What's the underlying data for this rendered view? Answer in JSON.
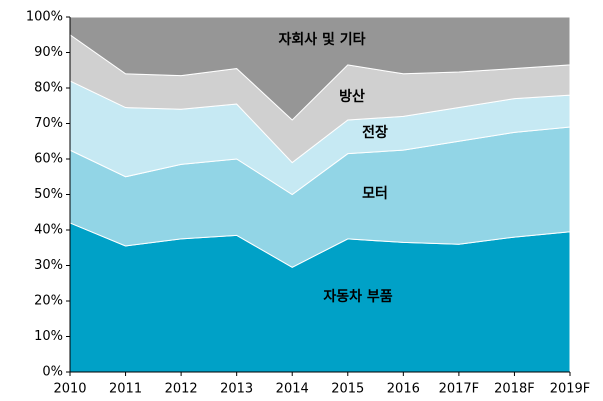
{
  "chart_data": {
    "type": "stacked_area",
    "categories": [
      "2010",
      "2011",
      "2012",
      "2013",
      "2014",
      "2015",
      "2016",
      "2017F",
      "2018F",
      "2019F"
    ],
    "series": [
      {
        "name": "자동차 부품",
        "color": "#00a1c7",
        "values": [
          42,
          35.5,
          37.5,
          38.5,
          29.5,
          37.5,
          36.5,
          36,
          38,
          39.5
        ]
      },
      {
        "name": "모터",
        "color": "#92d5e6",
        "values": [
          20.5,
          19.5,
          21,
          21.5,
          20.5,
          24,
          26,
          29,
          29.5,
          29.5
        ]
      },
      {
        "name": "전장",
        "color": "#c6e9f3",
        "values": [
          19.5,
          19.5,
          15.5,
          15.5,
          9,
          9.5,
          9.5,
          9.5,
          9.5,
          9
        ]
      },
      {
        "name": "방산",
        "color": "#d0d0d0",
        "values": [
          13,
          9.5,
          9.5,
          10,
          12,
          15.5,
          12,
          10,
          8.5,
          8.5
        ]
      },
      {
        "name": "자회사 및 기타",
        "color": "#969696",
        "values": [
          5,
          16,
          16.5,
          14.5,
          29,
          13.5,
          16,
          15.5,
          14.5,
          13.5
        ]
      }
    ],
    "ylim": [
      0,
      100
    ],
    "yticks": [
      {
        "value": 0,
        "label": "0%"
      },
      {
        "value": 10,
        "label": "10%"
      },
      {
        "value": 20,
        "label": "20%"
      },
      {
        "value": 30,
        "label": "30%"
      },
      {
        "value": 40,
        "label": "40%"
      },
      {
        "value": 50,
        "label": "50%"
      },
      {
        "value": 60,
        "label": "60%"
      },
      {
        "value": 70,
        "label": "70%"
      },
      {
        "value": 80,
        "label": "80%"
      },
      {
        "value": 90,
        "label": "90%"
      },
      {
        "value": 100,
        "label": "100%"
      }
    ]
  }
}
